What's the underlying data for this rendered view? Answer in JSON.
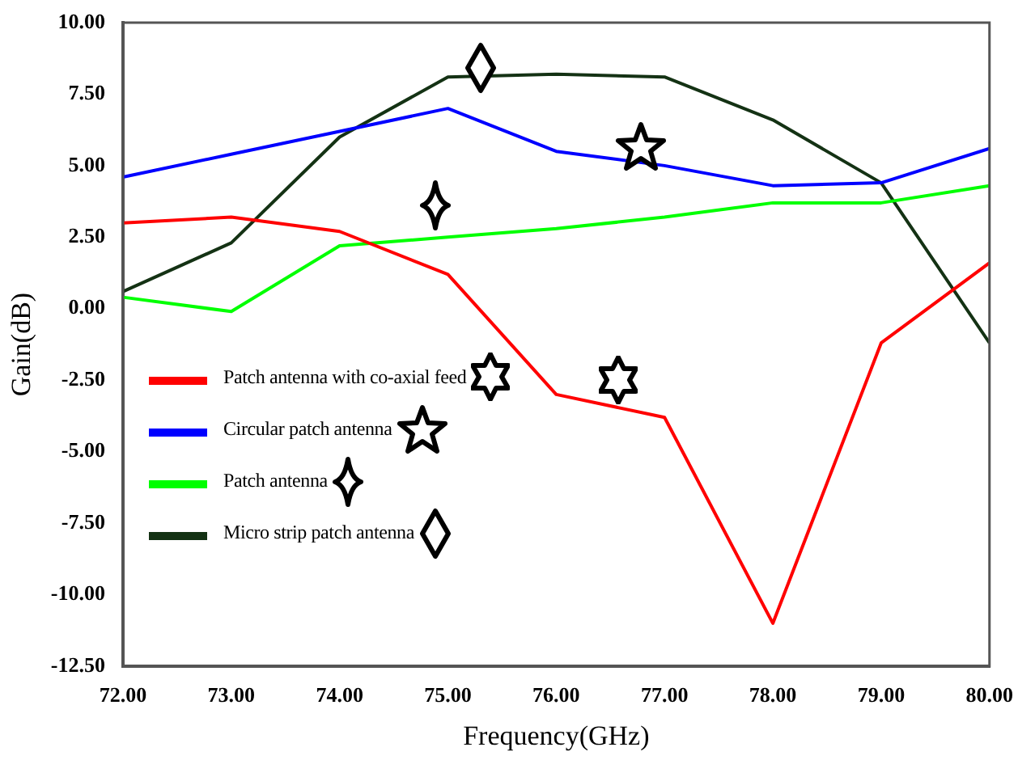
{
  "chart_data": {
    "type": "line",
    "xlabel": "Frequency(GHz)",
    "ylabel": "Gain(dB)",
    "x": [
      72,
      73,
      74,
      75,
      76,
      77,
      78,
      79,
      80
    ],
    "xlim": [
      72,
      80
    ],
    "xticks": [
      {
        "value": 72,
        "label": "72.00"
      },
      {
        "value": 73,
        "label": "73.00"
      },
      {
        "value": 74,
        "label": "74.00"
      },
      {
        "value": 75,
        "label": "75.00"
      },
      {
        "value": 76,
        "label": "76.00"
      },
      {
        "value": 77,
        "label": "77.00"
      },
      {
        "value": 78,
        "label": "78.00"
      },
      {
        "value": 79,
        "label": "79.00"
      },
      {
        "value": 80,
        "label": "80.00"
      }
    ],
    "ylim": [
      -12.5,
      10
    ],
    "yticks": [
      {
        "value": -12.5,
        "label": "-12.50"
      },
      {
        "value": -10,
        "label": "-10.00"
      },
      {
        "value": -7.5,
        "label": "-7.50"
      },
      {
        "value": -5,
        "label": "-5.00"
      },
      {
        "value": -2.5,
        "label": "-2.50"
      },
      {
        "value": 0,
        "label": "0.00"
      },
      {
        "value": 2.5,
        "label": "2.50"
      },
      {
        "value": 5,
        "label": "5.00"
      },
      {
        "value": 7.5,
        "label": "7.50"
      },
      {
        "value": 10,
        "label": "10.00"
      }
    ],
    "grid": false,
    "legend": "left",
    "marker": "none",
    "line_style": "solid",
    "series": [
      {
        "name": "Patch antenna with co-axial feed",
        "color": "#ff0000",
        "values": [
          3.0,
          3.2,
          2.7,
          1.2,
          -3.0,
          -3.8,
          -11.0,
          -1.2,
          1.6
        ]
      },
      {
        "name": "Circular  patch antenna",
        "color": "#0000ff",
        "values": [
          4.6,
          5.4,
          6.2,
          7.0,
          5.5,
          5.0,
          4.3,
          4.4,
          5.6
        ]
      },
      {
        "name": "Patch antenna",
        "color": "#00ff00",
        "values": [
          0.4,
          -0.1,
          2.2,
          2.5,
          2.8,
          3.2,
          3.7,
          3.7,
          4.3
        ]
      },
      {
        "name": "Micro strip patch antenna",
        "color": "#143214",
        "values": [
          0.6,
          2.3,
          6.0,
          8.1,
          8.2,
          8.1,
          6.6,
          4.4,
          -1.2
        ]
      }
    ]
  }
}
